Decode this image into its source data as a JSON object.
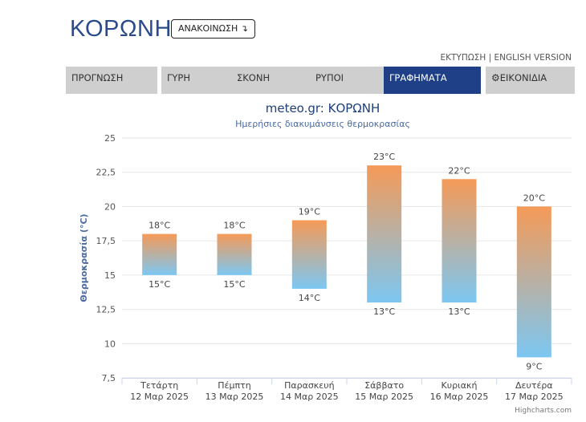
{
  "header": {
    "title": "ΚΟΡΩΝΗ",
    "announce_label": "ΑΝΑΚΟΙΝΩΣΗ ↴",
    "print_link": "ΕΚΤΥΠΩΣΗ",
    "separator": "|",
    "english_link": "ENGLISH VERSION"
  },
  "tabs": [
    {
      "label": "ΠΡΟΓΝΩΣΗ",
      "active": false
    },
    {
      "label": "ΓΥΡΗ",
      "active": false
    },
    {
      "label": "ΣΚΟΝΗ",
      "active": false
    },
    {
      "label": "ΡΥΠΟΙ",
      "active": false
    },
    {
      "label": "ΓΡΑΦΗΜΑΤΑ",
      "active": true
    },
    {
      "label": "ΕΙΚΟΝΙΔΙΑ",
      "active": false,
      "icon": "gear-icon"
    }
  ],
  "colors": {
    "accent": "#1f3f86",
    "title": "#2b4a8c",
    "bar_top": "#f59a57",
    "bar_bottom": "#7cc7f2",
    "tab_bg": "#cfcfcf"
  },
  "chart_data": {
    "type": "columnrange",
    "title": "meteo.gr: ΚΟΡΩΝΗ",
    "subtitle": "Ημερήσιες διακυμάνσεις θερμοκρασίας",
    "ylabel": "Θερμοκρασία (°C)",
    "ylim": [
      7.5,
      25
    ],
    "yticks": [
      "7,5",
      "10",
      "12,5",
      "15",
      "17,5",
      "20",
      "22,5",
      "25"
    ],
    "yticks_values": [
      7.5,
      10,
      12.5,
      15,
      17.5,
      20,
      22.5,
      25
    ],
    "grid": true,
    "categories": [
      {
        "day": "Τετάρτη",
        "date": "12 Μαρ 2025"
      },
      {
        "day": "Πέμπτη",
        "date": "13 Μαρ 2025"
      },
      {
        "day": "Παρασκευή",
        "date": "14 Μαρ 2025"
      },
      {
        "day": "Σάββατο",
        "date": "15 Μαρ 2025"
      },
      {
        "day": "Κυριακή",
        "date": "16 Μαρ 2025"
      },
      {
        "day": "Δευτέρα",
        "date": "17 Μαρ 2025"
      }
    ],
    "series": [
      {
        "low": 15,
        "high": 18,
        "low_label": "15°C",
        "high_label": "18°C"
      },
      {
        "low": 15,
        "high": 18,
        "low_label": "15°C",
        "high_label": "18°C"
      },
      {
        "low": 14,
        "high": 19,
        "low_label": "14°C",
        "high_label": "19°C"
      },
      {
        "low": 13,
        "high": 23,
        "low_label": "13°C",
        "high_label": "23°C"
      },
      {
        "low": 13,
        "high": 22,
        "low_label": "13°C",
        "high_label": "22°C"
      },
      {
        "low": 9,
        "high": 20,
        "low_label": "9°C",
        "high_label": "20°C"
      }
    ],
    "credits": "Highcharts.com"
  }
}
